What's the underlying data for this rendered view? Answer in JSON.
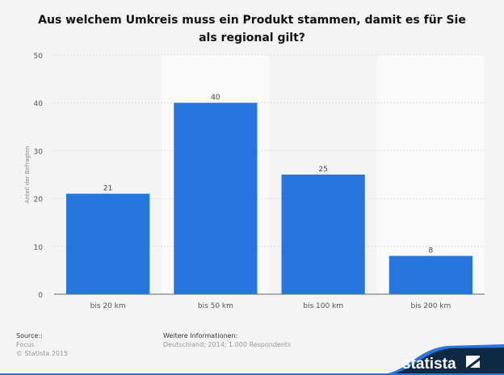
{
  "chart_data": {
    "type": "bar",
    "title": "Aus welchem Umkreis muss ein Produkt stammen, damit es für Sie als regional gilt?",
    "categories": [
      "bis 20 km",
      "bis 50 km",
      "bis 100 km",
      "bis 200 km"
    ],
    "values": [
      21,
      40,
      25,
      8
    ],
    "ylabel": "Anteil der Befragten",
    "xlabel": "",
    "ylim": [
      0,
      50
    ],
    "yticks": [
      0,
      10,
      20,
      30,
      40,
      50
    ],
    "grid": true,
    "bar_color": "#2876dd"
  },
  "footer": {
    "source_label": "Source::",
    "source": "Focus",
    "copyright": "© Statista 2015",
    "info_label": "Weitere Informationen:",
    "info": "Deutschland; 2014; 1.000 Respondents",
    "logo": "statista"
  }
}
